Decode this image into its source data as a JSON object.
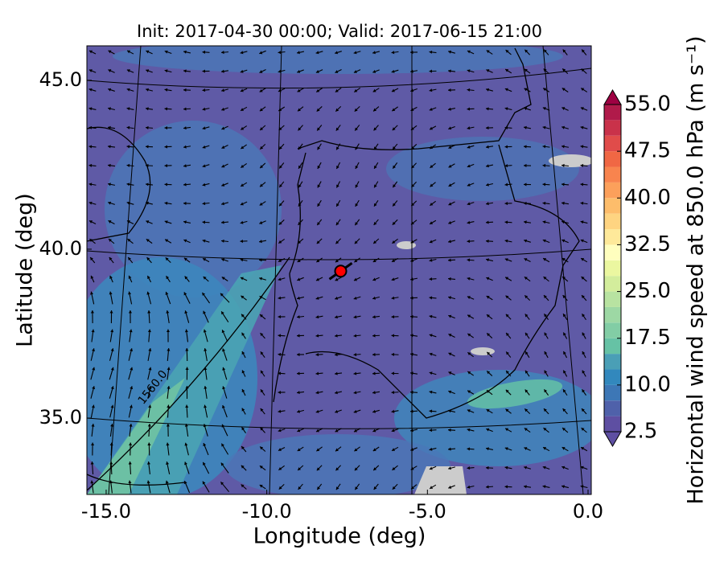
{
  "chart_data": {
    "type": "map",
    "title": "Init: 2017-04-30 00:00; Valid: 2017-06-15 21:00",
    "xlabel": "Longitude (deg)",
    "ylabel": "Latitude (deg)",
    "colorbar_label": "Horizontal wind speed at 850.0 hPa (m s⁻¹)",
    "contour_label": "1560.0",
    "xlim": [
      -15.6,
      0.1
    ],
    "ylim": [
      32.74,
      46.02
    ],
    "xticks": [
      {
        "value": -15,
        "label": "-15.0"
      },
      {
        "value": -10,
        "label": "-10.0"
      },
      {
        "value": -5,
        "label": "-5.0"
      },
      {
        "value": 0,
        "label": "0.0"
      }
    ],
    "yticks": [
      {
        "value": 35,
        "label": "35.0"
      },
      {
        "value": 40,
        "label": "40.0"
      },
      {
        "value": 45,
        "label": "45.0"
      }
    ],
    "colorbar_lim": [
      2.5,
      55
    ],
    "colorbar_ticks": [
      2.5,
      {
        "value": 10,
        "label": "10.0"
      },
      17.5,
      {
        "value": 25,
        "label": "25.0"
      },
      32.5,
      {
        "value": 40,
        "label": "40.0"
      },
      47.5,
      {
        "value": 55,
        "label": "55.0"
      }
    ],
    "levels": [
      2.5,
      5,
      7.5,
      10,
      12.5,
      15,
      17.5,
      20,
      22.5,
      25,
      27.5,
      30,
      32.5,
      35,
      37.5,
      40,
      42.5,
      45,
      47.5,
      50,
      52.5,
      55
    ],
    "colors": [
      "#5e4fa2",
      "#4f61aa",
      "#3d77b6",
      "#3288bd",
      "#4a9fb6",
      "#66c2a5",
      "#82cda5",
      "#9dd8a4",
      "#b8e3a1",
      "#d3ed9c",
      "#ebf7a0",
      "#fffebe",
      "#fee99a",
      "#fed481",
      "#fdbd6b",
      "#fca05b",
      "#f8844e",
      "#f06744",
      "#e04c4a",
      "#c9324a",
      "#b01a4a"
    ],
    "under_color": "#5e4fa2",
    "over_color": "#9e0142",
    "marker": {
      "lon": -7.7,
      "lat": 39.35,
      "color": "#ff0000"
    }
  }
}
